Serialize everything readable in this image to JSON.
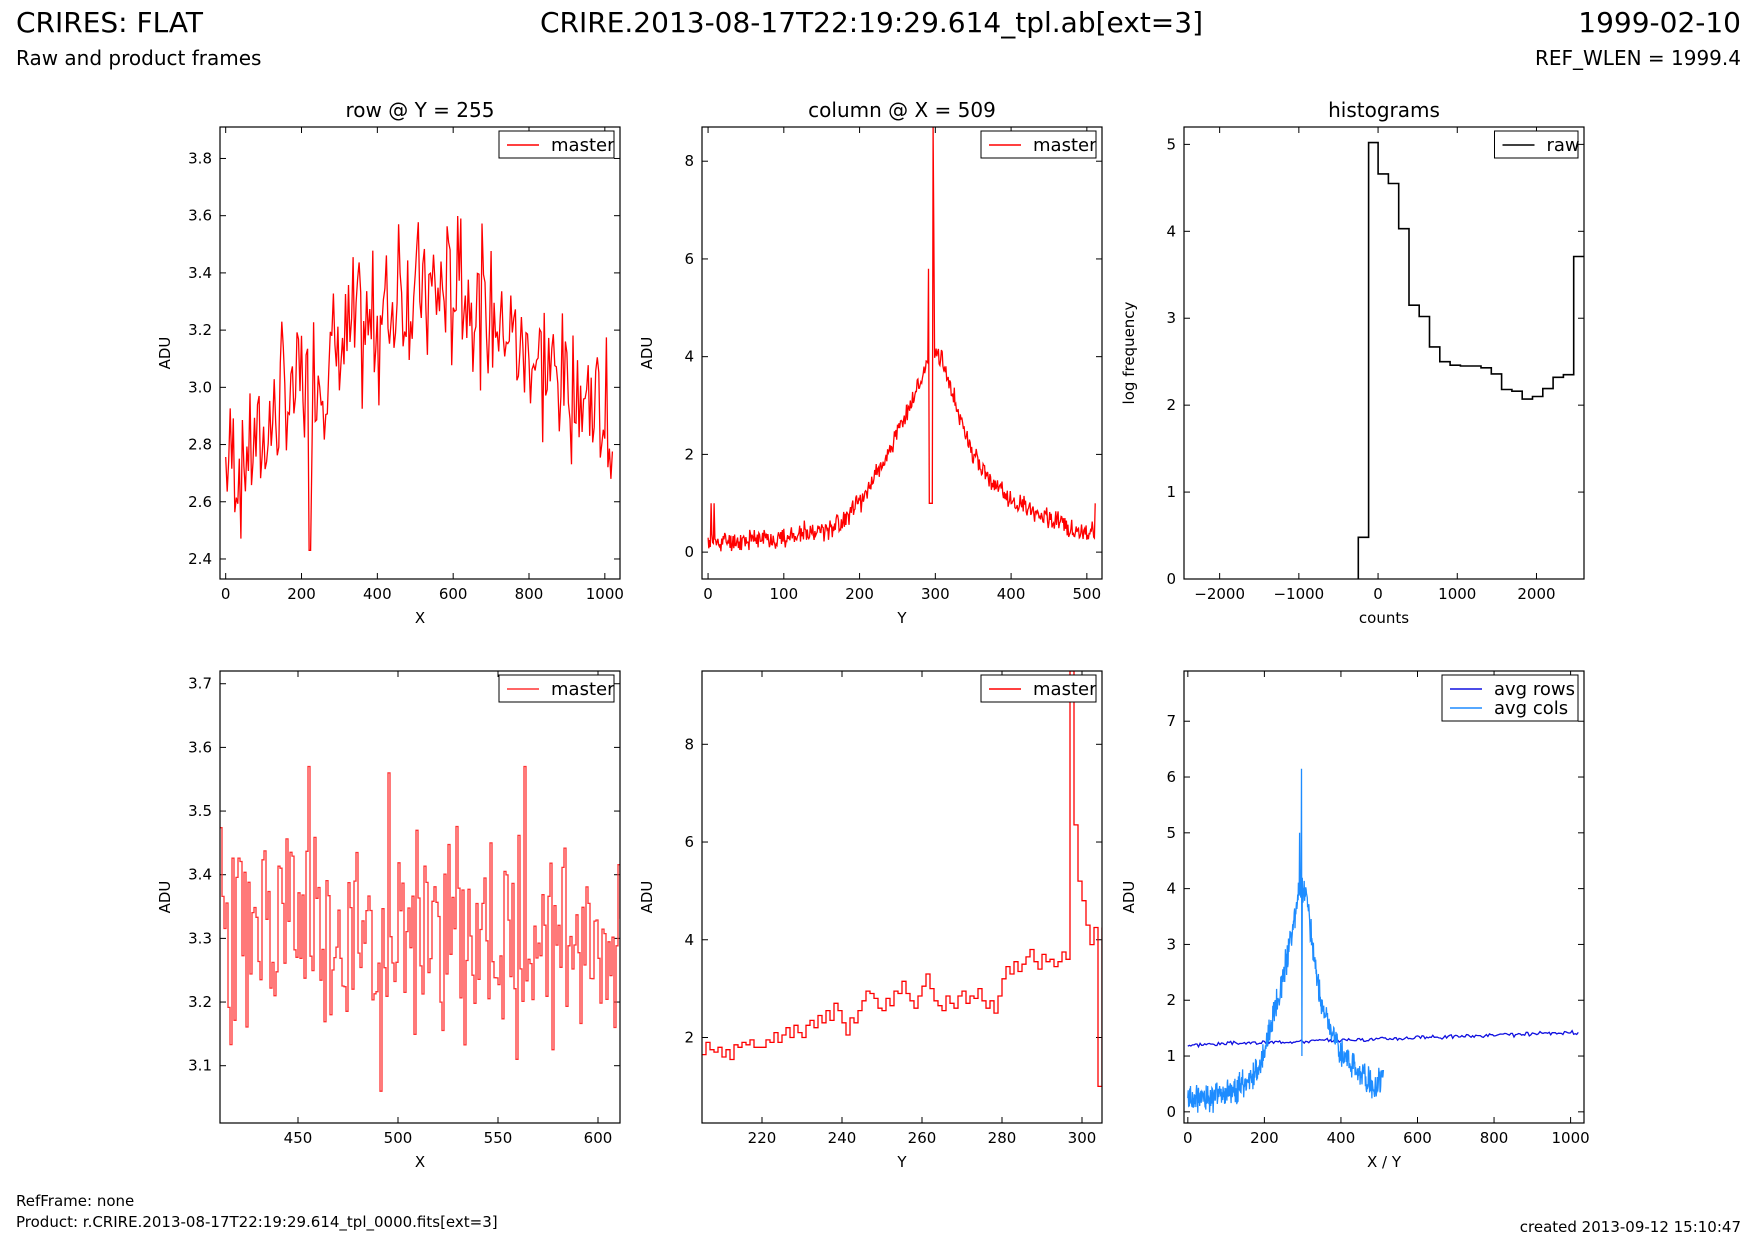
{
  "header": {
    "title": "CRIRES: FLAT",
    "subtitle": "Raw and product frames",
    "filename": "CRIRE.2013-08-17T22:19:29.614_tpl.ab[ext=3]",
    "date": "1999-02-10",
    "ref_wlen": "REF_WLEN = 1999.4"
  },
  "footer": {
    "refframe": "RefFrame: none",
    "product": "Product: r.CRIRE.2013-08-17T22:19:29.614_tpl_0000.fits[ext=3]",
    "created": "created 2013-09-12 15:10:47"
  },
  "colors": {
    "red": "#ff0000",
    "red_soft": "#ff3333",
    "blue": "#1010e0",
    "light_blue": "#1e8cff",
    "black": "#000000"
  },
  "chart_data": [
    {
      "id": "row",
      "type": "line",
      "title": "row @ Y = 255",
      "xlabel": "X",
      "ylabel": "ADU",
      "xlim": [
        -15,
        1040
      ],
      "ylim": [
        2.33,
        3.91
      ],
      "xticks": [
        0,
        200,
        400,
        600,
        800,
        1000
      ],
      "yticks": [
        2.4,
        2.6,
        2.8,
        3.0,
        3.2,
        3.4,
        3.6,
        3.8
      ],
      "ytick_format": "1",
      "legend": "top-right",
      "series": [
        {
          "name": "master",
          "color": "#ff0000",
          "noisy": true,
          "step": 4,
          "seed": 7,
          "noise": 0.22,
          "x": [
            0,
            50,
            100,
            150,
            200,
            250,
            300,
            350,
            400,
            450,
            500,
            550,
            600,
            650,
            700,
            750,
            800,
            850,
            900,
            950,
            1000,
            1023
          ],
          "y": [
            2.74,
            2.76,
            2.82,
            2.94,
            3.0,
            3.05,
            3.12,
            3.19,
            3.24,
            3.29,
            3.32,
            3.33,
            3.33,
            3.3,
            3.26,
            3.19,
            3.12,
            3.06,
            3.01,
            2.96,
            2.91,
            2.88
          ],
          "spikes": [
            {
              "x": 222,
              "y": 2.43
            },
            {
              "x": 455,
              "y": 3.57
            },
            {
              "x": 620,
              "y": 3.59
            },
            {
              "x": 1015,
              "y": 2.68
            },
            {
              "x": 1023,
              "y": 3.14
            }
          ]
        }
      ]
    },
    {
      "id": "column",
      "type": "line",
      "title": "column @ X = 509",
      "xlabel": "Y",
      "ylabel": "ADU",
      "xlim": [
        -8,
        520
      ],
      "ylim": [
        -0.55,
        8.7
      ],
      "xticks": [
        0,
        100,
        200,
        300,
        400,
        500
      ],
      "yticks": [
        0,
        2,
        4,
        6,
        8
      ],
      "ytick_format": "0",
      "legend": "top-right",
      "series": [
        {
          "name": "master",
          "color": "#ff0000",
          "noisy": true,
          "step": 1,
          "seed": 11,
          "noise": 0.18,
          "x": [
            0,
            10,
            50,
            100,
            150,
            180,
            200,
            220,
            240,
            260,
            275,
            285,
            290,
            300,
            310,
            320,
            335,
            350,
            370,
            400,
            430,
            460,
            490,
            511
          ],
          "y": [
            0.18,
            0.2,
            0.25,
            0.3,
            0.45,
            0.65,
            1.0,
            1.55,
            2.1,
            2.75,
            3.3,
            3.7,
            4.0,
            4.1,
            3.9,
            3.4,
            2.6,
            2.0,
            1.5,
            1.05,
            0.85,
            0.6,
            0.45,
            0.4
          ],
          "spikes": [
            {
              "x": 4,
              "y": 1.0
            },
            {
              "x": 8,
              "y": 1.0
            },
            {
              "x": 291,
              "y": 5.8
            },
            {
              "x": 297,
              "y": 8.7
            },
            {
              "x": 298,
              "y": 6.6
            },
            {
              "x": 511,
              "y": 1.0
            }
          ],
          "gap": {
            "x0": 292,
            "x1": 296,
            "y": 1.0
          }
        }
      ]
    },
    {
      "id": "hist",
      "type": "line",
      "title": "histograms",
      "xlabel": "counts",
      "ylabel": "log frequency",
      "xlim": [
        -2450,
        2600
      ],
      "ylim": [
        0,
        5.2
      ],
      "xticks": [
        -2000,
        -1000,
        0,
        1000,
        2000
      ],
      "yticks": [
        0,
        1,
        2,
        3,
        4,
        5
      ],
      "ytick_format": "0",
      "legend": "top-right",
      "series": [
        {
          "name": "raw",
          "color": "#000000",
          "step_hist": true,
          "edges": [
            -250,
            -120,
            0,
            130,
            260,
            390,
            520,
            650,
            780,
            910,
            1040,
            1170,
            1300,
            1430,
            1560,
            1690,
            1820,
            1950,
            2080,
            2210,
            2340,
            2470,
            2600
          ],
          "y": [
            0.48,
            5.02,
            4.66,
            4.55,
            4.03,
            3.15,
            3.02,
            2.67,
            2.5,
            2.46,
            2.45,
            2.45,
            2.43,
            2.36,
            2.18,
            2.16,
            2.07,
            2.1,
            2.19,
            2.32,
            2.35,
            3.71
          ],
          "start_y": 0
        }
      ]
    },
    {
      "id": "row_zoom",
      "type": "line",
      "title": "",
      "xlabel": "X",
      "ylabel": "ADU",
      "xlim": [
        411,
        611
      ],
      "ylim": [
        3.01,
        3.72
      ],
      "xticks": [
        450,
        500,
        550,
        600
      ],
      "yticks": [
        3.1,
        3.2,
        3.3,
        3.4,
        3.5,
        3.6,
        3.7
      ],
      "ytick_format": "1",
      "legend": "top-right",
      "series": [
        {
          "name": "master",
          "color": "#ff3333",
          "noisy": true,
          "step": 1,
          "stepstyle": true,
          "seed": 23,
          "noise": 0.14,
          "x": [
            411,
            450,
            500,
            550,
            611
          ],
          "y": [
            3.31,
            3.31,
            3.31,
            3.31,
            3.31
          ],
          "spikes": [
            {
              "x": 455,
              "y": 3.57
            },
            {
              "x": 491,
              "y": 3.06
            },
            {
              "x": 495,
              "y": 3.56
            },
            {
              "x": 559,
              "y": 3.11
            },
            {
              "x": 563,
              "y": 3.57
            },
            {
              "x": 608,
              "y": 3.16
            }
          ]
        }
      ]
    },
    {
      "id": "column_zoom",
      "type": "line",
      "title": "",
      "xlabel": "Y",
      "ylabel": "ADU",
      "xlim": [
        205,
        305
      ],
      "ylim": [
        0.25,
        9.5
      ],
      "xticks": [
        220,
        240,
        260,
        280,
        300
      ],
      "yticks": [
        2,
        4,
        6,
        8
      ],
      "ytick_format": "0",
      "legend": "top-right",
      "series": [
        {
          "name": "master",
          "color": "#ff0000",
          "stepstyle": true,
          "x": [
            205,
            206,
            207,
            208,
            209,
            210,
            211,
            212,
            213,
            214,
            215,
            216,
            217,
            218,
            219,
            220,
            221,
            222,
            223,
            224,
            225,
            226,
            227,
            228,
            229,
            230,
            231,
            232,
            233,
            234,
            235,
            236,
            237,
            238,
            239,
            240,
            241,
            242,
            243,
            244,
            245,
            246,
            247,
            248,
            249,
            250,
            251,
            252,
            253,
            254,
            255,
            256,
            257,
            258,
            259,
            260,
            261,
            262,
            263,
            264,
            265,
            266,
            267,
            268,
            269,
            270,
            271,
            272,
            273,
            274,
            275,
            276,
            277,
            278,
            279,
            280,
            281,
            282,
            283,
            284,
            285,
            286,
            287,
            288,
            289,
            290,
            291,
            292,
            293,
            294,
            295,
            296,
            297,
            298,
            299,
            300,
            301,
            302,
            303,
            304,
            305
          ],
          "y": [
            1.65,
            1.9,
            1.75,
            1.7,
            1.8,
            1.6,
            1.75,
            1.55,
            1.85,
            1.8,
            1.9,
            1.85,
            1.95,
            1.8,
            1.8,
            1.8,
            1.95,
            1.9,
            2.1,
            1.9,
            2.05,
            2.2,
            2.0,
            2.25,
            2.1,
            2.0,
            2.25,
            2.35,
            2.2,
            2.45,
            2.3,
            2.55,
            2.35,
            2.7,
            2.55,
            2.3,
            2.05,
            2.4,
            2.3,
            2.55,
            2.75,
            2.95,
            2.9,
            2.8,
            2.6,
            2.55,
            2.8,
            2.65,
            2.95,
            2.9,
            3.15,
            2.9,
            2.75,
            2.6,
            2.85,
            3.05,
            3.3,
            3.0,
            2.75,
            2.65,
            2.55,
            2.85,
            2.7,
            2.6,
            2.85,
            2.95,
            2.7,
            2.85,
            2.8,
            3.0,
            2.75,
            2.6,
            2.75,
            2.5,
            2.85,
            3.2,
            3.45,
            3.3,
            3.55,
            3.35,
            3.5,
            3.65,
            3.8,
            3.55,
            3.4,
            3.7,
            3.55,
            3.6,
            3.45,
            3.55,
            3.75,
            3.6,
            3.75,
            3.95,
            4.25,
            4.6,
            5.8,
            1.0,
            1.0,
            1.0,
            1.0
          ],
          "spikes": [
            {
              "x": 297,
              "y": 9.5
            },
            {
              "x": 298,
              "y": 6.35
            },
            {
              "x": 299,
              "y": 5.2
            },
            {
              "x": 300,
              "y": 4.8
            },
            {
              "x": 301,
              "y": 4.3
            },
            {
              "x": 302,
              "y": 3.9
            },
            {
              "x": 303,
              "y": 4.25
            },
            {
              "x": 305,
              "y": 4.25
            }
          ]
        }
      ]
    },
    {
      "id": "averages",
      "type": "line",
      "title": "",
      "xlabel": "X / Y",
      "ylabel": "ADU",
      "xlim": [
        -10,
        1035
      ],
      "ylim": [
        -0.2,
        7.9
      ],
      "xticks": [
        0,
        200,
        400,
        600,
        800,
        1000
      ],
      "yticks": [
        0,
        1,
        2,
        3,
        4,
        5,
        6,
        7
      ],
      "ytick_format": "0",
      "legend": "top-right",
      "series": [
        {
          "name": "avg rows",
          "color": "#1010e0",
          "noisy": true,
          "step": 4,
          "seed": 3,
          "noise": 0.03,
          "x": [
            0,
            1023
          ],
          "y": [
            1.2,
            1.42
          ]
        },
        {
          "name": "avg cols",
          "color": "#1e8cff",
          "noisy": true,
          "step": 1,
          "seed": 19,
          "noise": 0.22,
          "x": [
            0,
            10,
            50,
            100,
            150,
            180,
            200,
            220,
            240,
            260,
            275,
            285,
            290,
            300,
            310,
            320,
            335,
            350,
            370,
            400,
            430,
            460,
            490,
            511
          ],
          "y": [
            0.2,
            0.21,
            0.26,
            0.33,
            0.5,
            0.72,
            1.05,
            1.6,
            2.15,
            2.8,
            3.35,
            3.75,
            4.0,
            4.05,
            3.85,
            3.35,
            2.55,
            1.95,
            1.5,
            1.05,
            0.85,
            0.6,
            0.45,
            0.72
          ],
          "spikes": [
            {
              "x": 292,
              "y": 5.0
            },
            {
              "x": 297,
              "y": 6.15
            },
            {
              "x": 298,
              "y": 1.0
            },
            {
              "x": 511,
              "y": 0.75
            }
          ]
        }
      ]
    }
  ]
}
